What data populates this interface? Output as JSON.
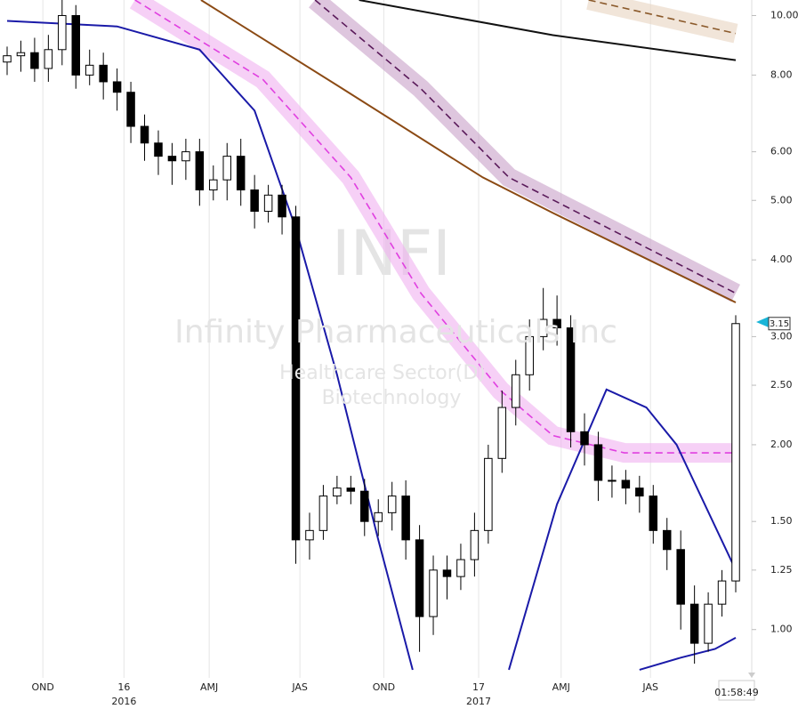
{
  "chart_data": {
    "type": "candlestick",
    "watermark": {
      "symbol": "INFI",
      "company": "Infinity Pharmaceuticals Inc",
      "sector": "Healthcare Sector(D)",
      "industry": "Biotechnology"
    },
    "clock": "01:58:49",
    "log_scale": true,
    "grid": true,
    "up_color": "#ffffff",
    "down_color": "#000000",
    "xlim": [
      0,
      53
    ],
    "ylim": [
      0.84,
      10.6
    ],
    "yticks": [
      {
        "value": 10,
        "label": "10.00"
      },
      {
        "value": 8,
        "label": "8.00"
      },
      {
        "value": 6,
        "label": "6.00"
      },
      {
        "value": 5,
        "label": "5.00"
      },
      {
        "value": 4,
        "label": "4.00"
      },
      {
        "value": 3,
        "label": "3.00"
      },
      {
        "value": 2.5,
        "label": "2.50"
      },
      {
        "value": 2,
        "label": "2.00"
      },
      {
        "value": 1.5,
        "label": "1.50"
      },
      {
        "value": 1.25,
        "label": "1.25"
      },
      {
        "value": 1,
        "label": "1.00"
      }
    ],
    "xticks": [
      {
        "value": 2.6,
        "label": "OND"
      },
      {
        "value": 8.5,
        "label": "16"
      },
      {
        "value": 14.7,
        "label": "AMJ"
      },
      {
        "value": 21.3,
        "label": "JAS"
      },
      {
        "value": 27.4,
        "label": "OND"
      },
      {
        "value": 34.3,
        "label": "17"
      },
      {
        "value": 40.3,
        "label": "AMJ"
      },
      {
        "value": 46.8,
        "label": "JAS"
      }
    ],
    "year_labels": [
      {
        "value": 8.5,
        "label": "2016"
      },
      {
        "value": 34.3,
        "label": "2017"
      }
    ],
    "open": [
      8.4,
      8.6,
      8.7,
      8.2,
      8.8,
      10.0,
      8.0,
      8.3,
      7.8,
      7.5,
      6.6,
      6.2,
      5.9,
      5.8,
      6.0,
      5.2,
      5.4,
      5.9,
      5.2,
      4.8,
      5.1,
      4.7,
      1.4,
      1.45,
      1.65,
      1.7,
      1.68,
      1.5,
      1.55,
      1.65,
      1.4,
      1.05,
      1.25,
      1.22,
      1.3,
      1.45,
      1.9,
      2.3,
      2.6,
      3.0,
      3.2,
      3.1,
      2.1,
      2.0,
      1.75,
      1.75,
      1.7,
      1.65,
      1.45,
      1.35,
      1.1,
      0.95,
      1.1,
      1.2
    ],
    "high": [
      8.9,
      9.1,
      9.2,
      9.3,
      10.6,
      10.4,
      8.8,
      8.7,
      8.2,
      7.8,
      6.9,
      6.5,
      6.2,
      6.3,
      6.3,
      5.7,
      6.2,
      6.3,
      5.5,
      5.3,
      5.3,
      4.9,
      1.55,
      1.72,
      1.78,
      1.78,
      1.76,
      1.63,
      1.74,
      1.75,
      1.48,
      1.32,
      1.32,
      1.38,
      1.55,
      2.0,
      2.45,
      2.75,
      3.2,
      3.6,
      3.5,
      3.25,
      2.25,
      2.1,
      1.85,
      1.82,
      1.78,
      1.72,
      1.52,
      1.45,
      1.18,
      1.15,
      1.25,
      3.25
    ],
    "low": [
      8.0,
      8.1,
      7.8,
      7.8,
      8.3,
      7.6,
      7.7,
      7.3,
      7.0,
      6.2,
      5.8,
      5.5,
      5.3,
      5.4,
      4.9,
      5.0,
      5.0,
      4.9,
      4.5,
      4.6,
      4.4,
      1.28,
      1.3,
      1.4,
      1.6,
      1.6,
      1.42,
      1.42,
      1.45,
      1.3,
      0.92,
      0.98,
      1.12,
      1.16,
      1.22,
      1.38,
      1.8,
      2.15,
      2.45,
      2.85,
      2.9,
      1.98,
      1.85,
      1.62,
      1.64,
      1.6,
      1.55,
      1.38,
      1.25,
      1.0,
      0.88,
      0.92,
      1.05,
      1.15
    ],
    "close": [
      8.6,
      8.7,
      8.2,
      8.8,
      10.0,
      8.0,
      8.3,
      7.8,
      7.5,
      6.6,
      6.2,
      5.9,
      5.8,
      6.0,
      5.2,
      5.4,
      5.9,
      5.2,
      4.8,
      5.1,
      4.7,
      1.4,
      1.45,
      1.65,
      1.7,
      1.68,
      1.5,
      1.55,
      1.65,
      1.4,
      1.05,
      1.25,
      1.22,
      1.3,
      1.45,
      1.9,
      2.3,
      2.6,
      3.0,
      3.2,
      3.1,
      2.1,
      2.0,
      1.75,
      1.75,
      1.7,
      1.65,
      1.45,
      1.35,
      1.1,
      0.95,
      1.1,
      1.2,
      3.15
    ],
    "overlays": [
      {
        "color": "#e040e0",
        "band": "#f0b0f0",
        "dash": true,
        "x": [
          9.3,
          18.6,
          25,
          30.1,
          35.9,
          39.7,
          44.9,
          53
        ],
        "values": [
          10.6,
          7.87,
          5.45,
          3.53,
          2.45,
          2.07,
          1.94,
          1.94
        ]
      },
      {
        "color": "#5a1a5a",
        "band": "#c8a0c8",
        "dash": true,
        "x": [
          22.4,
          30.1,
          36.5,
          53
        ],
        "values": [
          10.6,
          7.6,
          5.45,
          3.53
        ]
      },
      {
        "color": "#8b4a14",
        "x": [
          14.1,
          24.4,
          34.6,
          39.7,
          53
        ],
        "values": [
          10.6,
          7.6,
          5.45,
          4.77,
          3.41
        ]
      },
      {
        "color": "#111111",
        "x": [
          25.6,
          39.7,
          53
        ],
        "values": [
          10.6,
          9.29,
          8.46
        ]
      },
      {
        "color": "#8b5a2b",
        "band": "#e8d4c0",
        "dash": true,
        "x": [
          42.3,
          53
        ],
        "values": [
          10.6,
          9.35
        ]
      },
      {
        "color": "#1a1aa8",
        "x": [
          0,
          8,
          14,
          18,
          21,
          24,
          27,
          29.5
        ],
        "values": [
          9.8,
          9.6,
          8.8,
          7.0,
          4.5,
          2.6,
          1.4,
          0.86
        ]
      },
      {
        "color": "#1a1aa8",
        "x": [
          36.5,
          40,
          43.6,
          46.5,
          48.7,
          53
        ],
        "values": [
          0.86,
          1.6,
          2.46,
          2.3,
          2.0,
          1.25
        ]
      },
      {
        "color": "#1a1aa8",
        "x": [
          46,
          49,
          51.5,
          53
        ],
        "values": [
          0.86,
          0.9,
          0.93,
          0.97
        ]
      }
    ]
  }
}
